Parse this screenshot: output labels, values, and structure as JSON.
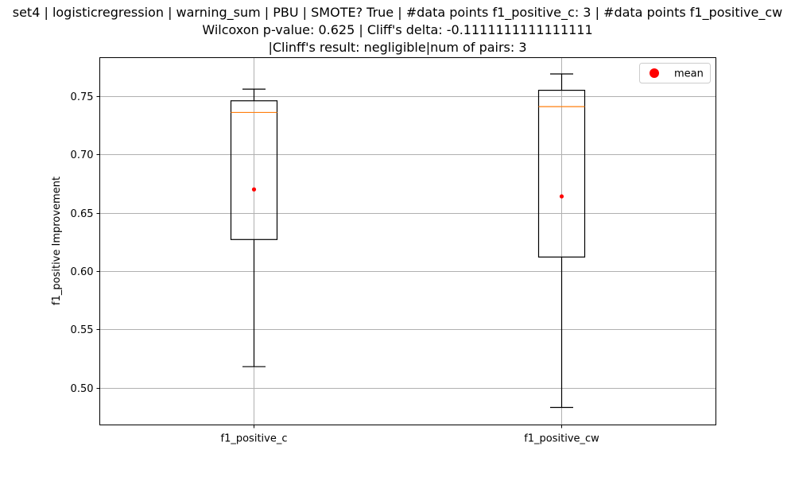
{
  "chart_data": {
    "type": "box",
    "title_lines": [
      "set4 | logisticregression | warning_sum | PBU | SMOTE? True | #data points f1_positive_c: 3 | #data points f1_positive_cw",
      "Wilcoxon p-value: 0.625 | Cliff's delta: -0.1111111111111111",
      "|Clinff's result: negligible|num of pairs: 3"
    ],
    "xlabel": "",
    "ylabel": "f1_positive Improvement",
    "categories": [
      "f1_positive_c",
      "f1_positive_cw"
    ],
    "ylim": [
      0.468,
      0.783
    ],
    "yticks": [
      0.5,
      0.55,
      0.6,
      0.65,
      0.7,
      0.75
    ],
    "ytick_labels": [
      "0.50",
      "0.55",
      "0.60",
      "0.65",
      "0.70",
      "0.75"
    ],
    "grid": true,
    "legend": {
      "position": "top-right",
      "entries": [
        "mean"
      ]
    },
    "boxes": [
      {
        "category": "f1_positive_c",
        "whisker_low": 0.518,
        "q1": 0.627,
        "median": 0.736,
        "q3": 0.746,
        "whisker_high": 0.756,
        "mean": 0.67
      },
      {
        "category": "f1_positive_cw",
        "whisker_low": 0.483,
        "q1": 0.612,
        "median": 0.741,
        "q3": 0.755,
        "whisker_high": 0.769,
        "mean": 0.664
      }
    ],
    "colors": {
      "box": "#000000",
      "median": "#ff7f0e",
      "mean": "#ff0000",
      "grid": "#b0b0b0"
    }
  }
}
